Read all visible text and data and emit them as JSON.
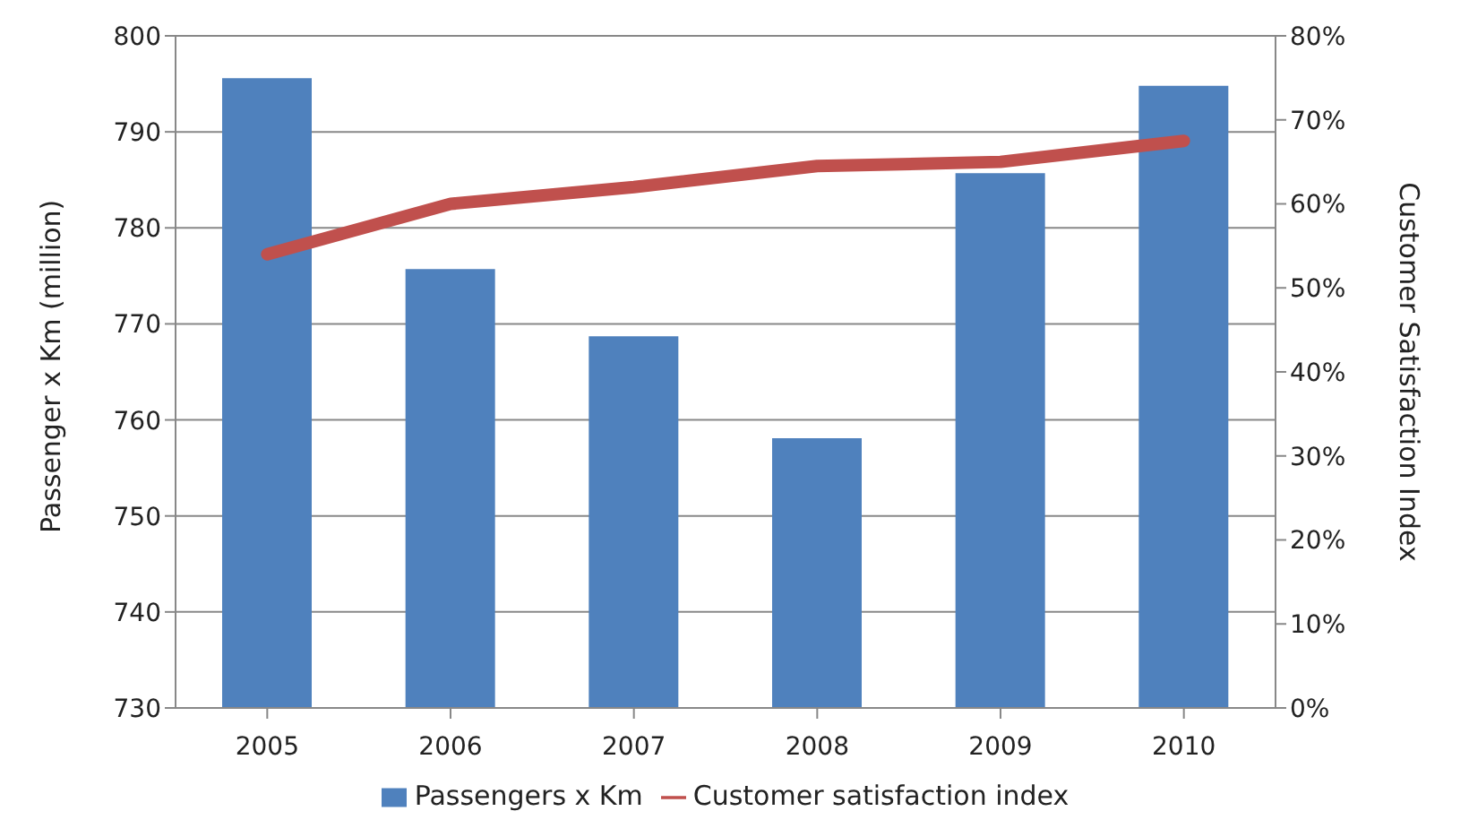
{
  "chart_data": {
    "type": "bar",
    "categories": [
      "2005",
      "2006",
      "2007",
      "2008",
      "2009",
      "2010"
    ],
    "series": [
      {
        "name": "Passengers x Km",
        "color": "#4f81bd",
        "values": [
          795.6,
          775.7,
          768.7,
          758.1,
          785.7,
          794.8
        ]
      },
      {
        "name": "Customer satisfaction index",
        "type": "line",
        "axis": "y2",
        "color": "#c0504d",
        "values": [
          54,
          60,
          62,
          64.5,
          65,
          67.5
        ]
      }
    ],
    "ylabel": "Passenger x Km (million)",
    "y2label": "Customer Satisfaction Index",
    "ylim": [
      730,
      800
    ],
    "yticks": [
      730,
      740,
      750,
      760,
      770,
      780,
      790,
      800
    ],
    "y2lim": [
      0,
      80
    ],
    "y2ticks": [
      {
        "value": 0,
        "label": "0%"
      },
      {
        "value": 10,
        "label": "10%"
      },
      {
        "value": 20,
        "label": "20%"
      },
      {
        "value": 30,
        "label": "30%"
      },
      {
        "value": 40,
        "label": "40%"
      },
      {
        "value": 50,
        "label": "50%"
      },
      {
        "value": 60,
        "label": "60%"
      },
      {
        "value": 70,
        "label": "70%"
      },
      {
        "value": 80,
        "label": "80%"
      }
    ],
    "grid": "y",
    "legend": "bottom",
    "marker": "none"
  }
}
